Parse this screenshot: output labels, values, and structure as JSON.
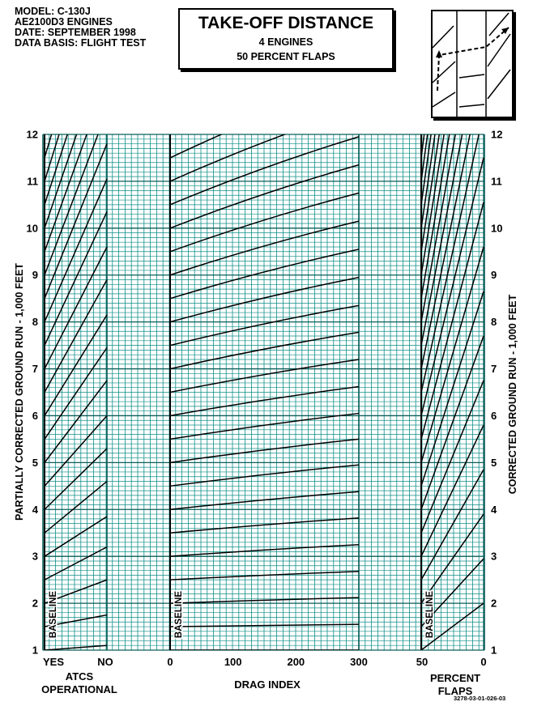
{
  "header": {
    "model": "MODEL: C-130J",
    "engines": "AE2100D3 ENGINES",
    "date": "DATE: SEPTEMBER 1998",
    "data_basis": "DATA BASIS: FLIGHT TEST"
  },
  "title_box": {
    "title": "TAKE-OFF DISTANCE",
    "subtitle1": "4 ENGINES",
    "subtitle2": "50 PERCENT FLAPS"
  },
  "doc_id": "3278-03-01-026-03",
  "colors": {
    "grid": "#0f8f88",
    "lines": "#000000",
    "background": "#ffffff"
  },
  "chart_data": {
    "type": "line",
    "title": "TAKE-OFF DISTANCE",
    "ylabel_left": "PARTIALLY CORRECTED GROUND RUN - 1,000 FEET",
    "ylabel_right": "CORRECTED GROUND RUN - 1,000 FEET",
    "ylim": [
      1,
      12
    ],
    "y_ticks": [
      "1",
      "2",
      "3",
      "4",
      "5",
      "6",
      "7",
      "8",
      "9",
      "10",
      "11",
      "12"
    ],
    "grid": true,
    "panels": [
      {
        "name": "atcs",
        "xlabel_line1": "ATCS",
        "xlabel_line2": "OPERATIONAL",
        "ticks": [
          "YES",
          "NO"
        ],
        "baseline_label": "BASELINE",
        "guide_lines": [
          {
            "start": 1.0,
            "end": 1.1
          },
          {
            "start": 1.5,
            "end": 1.75
          },
          {
            "start": 2.0,
            "end": 2.5
          },
          {
            "start": 2.5,
            "end": 3.2
          },
          {
            "start": 3.0,
            "end": 3.85
          },
          {
            "start": 3.5,
            "end": 4.6
          },
          {
            "start": 4.0,
            "end": 5.3
          },
          {
            "start": 4.5,
            "end": 6.0
          },
          {
            "start": 5.0,
            "end": 6.75
          },
          {
            "start": 5.5,
            "end": 7.45
          },
          {
            "start": 6.0,
            "end": 8.15
          },
          {
            "start": 6.5,
            "end": 8.9
          },
          {
            "start": 7.0,
            "end": 9.6
          },
          {
            "start": 7.5,
            "end": 10.35
          },
          {
            "start": 8.0,
            "end": 11.05
          },
          {
            "start": 8.5,
            "end": 11.8
          },
          {
            "start": 9.0,
            "end": 12.5
          },
          {
            "start": 9.5,
            "end": 13.2
          },
          {
            "start": 10.0,
            "end": 13.9
          },
          {
            "start": 10.5,
            "end": 14.6
          },
          {
            "start": 11.0,
            "end": 15.3
          },
          {
            "start": 11.5,
            "end": 16.0
          }
        ]
      },
      {
        "name": "drag_index",
        "xlabel": "DRAG INDEX",
        "xlim": [
          0,
          300
        ],
        "x_ticks": [
          "0",
          "100",
          "200",
          "300"
        ],
        "baseline_label": "BASELINE",
        "guide_lines": [
          {
            "start": 1.0,
            "end": 1.0
          },
          {
            "start": 1.5,
            "end": 1.55
          },
          {
            "start": 2.0,
            "end": 2.12
          },
          {
            "start": 2.5,
            "end": 2.68
          },
          {
            "start": 3.0,
            "end": 3.25
          },
          {
            "start": 3.5,
            "end": 3.82
          },
          {
            "start": 4.0,
            "end": 4.38
          },
          {
            "start": 4.5,
            "end": 4.95
          },
          {
            "start": 5.0,
            "end": 5.5
          },
          {
            "start": 5.5,
            "end": 6.05
          },
          {
            "start": 6.0,
            "end": 6.62
          },
          {
            "start": 6.5,
            "end": 7.2
          },
          {
            "start": 7.0,
            "end": 7.78
          },
          {
            "start": 7.5,
            "end": 8.35
          },
          {
            "start": 8.0,
            "end": 8.95
          },
          {
            "start": 8.5,
            "end": 9.55
          },
          {
            "start": 9.0,
            "end": 10.15
          },
          {
            "start": 9.5,
            "end": 10.75
          },
          {
            "start": 10.0,
            "end": 11.35
          },
          {
            "start": 10.5,
            "end": 11.95
          },
          {
            "start": 11.0,
            "end": 12.55
          },
          {
            "start": 11.5,
            "end": 13.15
          }
        ]
      },
      {
        "name": "percent_flaps",
        "xlabel_line1": "PERCENT",
        "xlabel_line2": "FLAPS",
        "ticks": [
          "50",
          "0"
        ],
        "baseline_label": "BASELINE",
        "guide_lines": [
          {
            "start": 1.0,
            "end": 2.0
          },
          {
            "start": 1.5,
            "end": 2.95
          },
          {
            "start": 2.0,
            "end": 3.9
          },
          {
            "start": 2.5,
            "end": 4.85
          },
          {
            "start": 3.0,
            "end": 5.8
          },
          {
            "start": 3.5,
            "end": 6.75
          },
          {
            "start": 4.0,
            "end": 7.7
          },
          {
            "start": 4.5,
            "end": 8.65
          },
          {
            "start": 5.0,
            "end": 9.6
          },
          {
            "start": 5.5,
            "end": 10.55
          },
          {
            "start": 6.0,
            "end": 11.5
          },
          {
            "start": 6.5,
            "end": 12.45
          },
          {
            "start": 7.0,
            "end": 13.4
          },
          {
            "start": 7.5,
            "end": 14.35
          },
          {
            "start": 8.0,
            "end": 15.3
          },
          {
            "start": 8.5,
            "end": 16.25
          },
          {
            "start": 9.0,
            "end": 17.2
          },
          {
            "start": 9.5,
            "end": 18.15
          },
          {
            "start": 10.0,
            "end": 19.1
          },
          {
            "start": 10.5,
            "end": 20.05
          },
          {
            "start": 11.0,
            "end": 21.0
          },
          {
            "start": 11.5,
            "end": 21.95
          }
        ]
      }
    ]
  }
}
